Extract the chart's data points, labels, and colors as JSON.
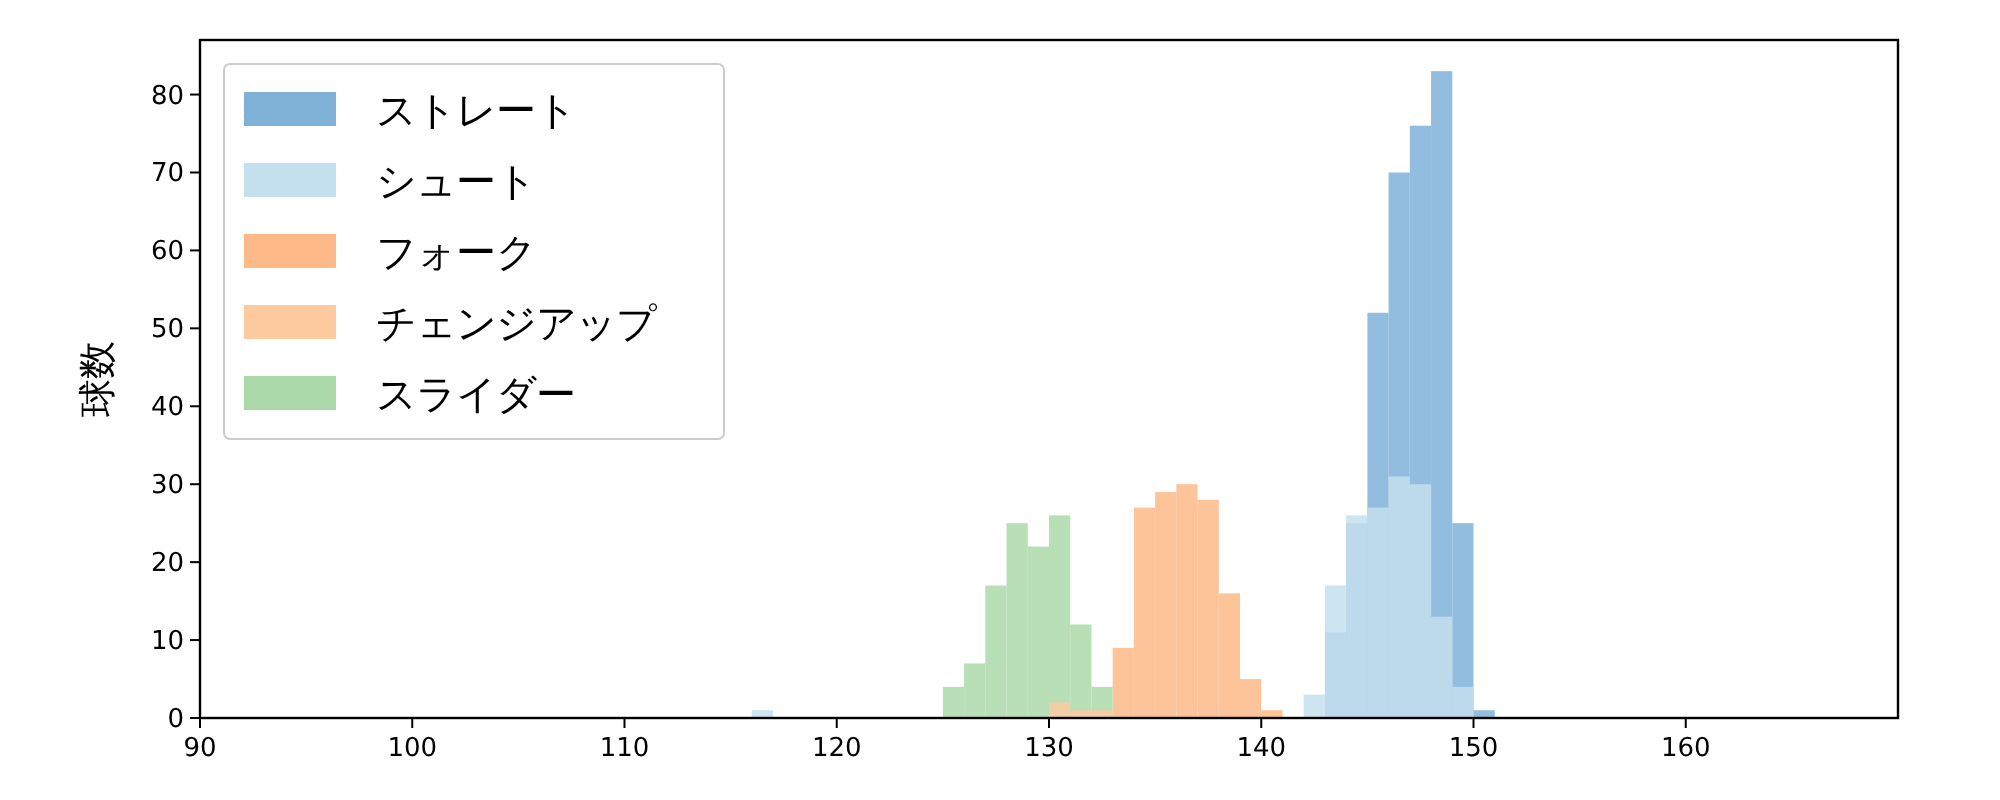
{
  "chart_data": {
    "type": "histogram",
    "ylabel": "球数",
    "xlim": [
      90,
      170
    ],
    "ylim": [
      0,
      87
    ],
    "xticks": [
      90,
      100,
      110,
      120,
      130,
      140,
      150,
      160
    ],
    "yticks": [
      0,
      10,
      20,
      30,
      40,
      50,
      60,
      70,
      80
    ],
    "grid": false,
    "legend": "top left",
    "bins": [
      116,
      117,
      118,
      119,
      120,
      121,
      122,
      123,
      124,
      125,
      126,
      127,
      128,
      129,
      130,
      131,
      132,
      133,
      134,
      135,
      136,
      137,
      138,
      139,
      140,
      141,
      142,
      143,
      144,
      145,
      146,
      147,
      148,
      149,
      150,
      151
    ],
    "series": [
      {
        "name": "ストレート",
        "color": "#80b2d8",
        "values": [
          0,
          0,
          0,
          0,
          0,
          0,
          0,
          0,
          0,
          0,
          0,
          0,
          0,
          0,
          0,
          0,
          0,
          0,
          0,
          0,
          0,
          0,
          0,
          0,
          0,
          0,
          0,
          11,
          25,
          52,
          70,
          76,
          83,
          25,
          1
        ]
      },
      {
        "name": "シュート",
        "color": "#c4dfee",
        "values": [
          1,
          0,
          0,
          0,
          0,
          0,
          0,
          0,
          0,
          0,
          0,
          0,
          0,
          0,
          0,
          0,
          0,
          0,
          0,
          0,
          0,
          0,
          0,
          0,
          0,
          0,
          3,
          17,
          26,
          27,
          31,
          30,
          13,
          4,
          0
        ]
      },
      {
        "name": "フォーク",
        "color": "#fdba88",
        "values": [
          0,
          0,
          0,
          0,
          0,
          0,
          0,
          0,
          0,
          0,
          0,
          0,
          0,
          0,
          0,
          0,
          0,
          9,
          27,
          29,
          30,
          28,
          16,
          5,
          1,
          0,
          0,
          0,
          0,
          0,
          0,
          0,
          0,
          0,
          0
        ]
      },
      {
        "name": "チェンジアップ",
        "color": "#fdcaa0",
        "values": [
          0,
          0,
          0,
          0,
          0,
          0,
          0,
          0,
          0,
          0,
          0,
          0,
          0,
          0,
          2,
          1,
          1,
          null,
          0,
          0,
          0,
          0,
          0,
          0,
          0,
          0,
          0,
          0,
          0,
          0,
          0,
          0,
          0,
          0,
          0
        ]
      },
      {
        "name": "スライダー",
        "color": "#abd9a9",
        "values": [
          0,
          0,
          0,
          0,
          0,
          0,
          0,
          0,
          0,
          4,
          7,
          17,
          25,
          22,
          26,
          12,
          4,
          0,
          0,
          0,
          0,
          0,
          0,
          0,
          0,
          0,
          0,
          0,
          0,
          0,
          0,
          0,
          0,
          0,
          0
        ]
      }
    ]
  }
}
